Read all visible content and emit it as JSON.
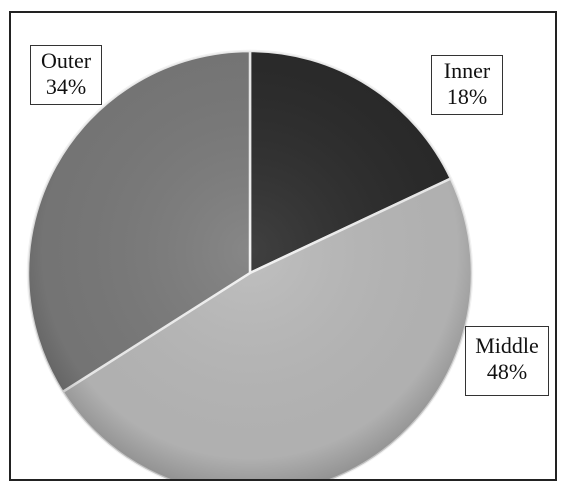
{
  "chart_data": {
    "type": "pie",
    "slices": [
      {
        "label": "Inner",
        "value": 18,
        "value_label": "18%",
        "color": "#2b2b2b"
      },
      {
        "label": "Middle",
        "value": 48,
        "value_label": "48%",
        "color": "#b9b9b9"
      },
      {
        "label": "Outer",
        "value": 34,
        "value_label": "34%",
        "color": "#7a7a7a"
      }
    ],
    "start": "12 o'clock",
    "direction": "clockwise",
    "legend": "none",
    "data_labels": "boxed callouts"
  }
}
